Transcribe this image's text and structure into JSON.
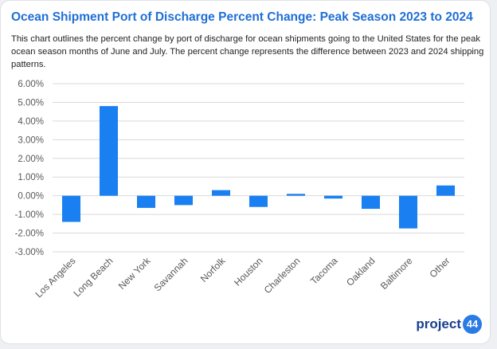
{
  "title": "Ocean Shipment Port of Discharge Percent Change: Peak Season 2023 to 2024",
  "description": "This chart outlines the percent change by port of discharge for ocean shipments going to the United States for the peak ocean season months of June and July. The percent change represents the difference between 2023 and 2024 shipping patterns.",
  "logo": {
    "text": "project",
    "number": "44"
  },
  "colors": {
    "bar": "#1a7ff0",
    "grid": "#d9d9d9",
    "title": "#1f6fd6",
    "tick": "#595959"
  },
  "chart_data": {
    "type": "bar",
    "categories": [
      "Los Angeles",
      "Long Beach",
      "New York",
      "Savannah",
      "Norfolk",
      "Houston",
      "Charleston",
      "Tacoma",
      "Oakland",
      "Baltimore",
      "Other"
    ],
    "values": [
      -1.4,
      4.8,
      -0.65,
      -0.5,
      0.3,
      -0.6,
      0.1,
      -0.15,
      -0.7,
      -1.75,
      0.55
    ],
    "value_unit": "%",
    "ylim": [
      -3,
      6
    ],
    "yticks": [
      "6.00%",
      "5.00%",
      "4.00%",
      "3.00%",
      "2.00%",
      "1.00%",
      "0.00%",
      "-1.00%",
      "-2.00%",
      "-3.00%"
    ],
    "grid": true,
    "legend": "none",
    "xlabel": "",
    "ylabel": ""
  }
}
